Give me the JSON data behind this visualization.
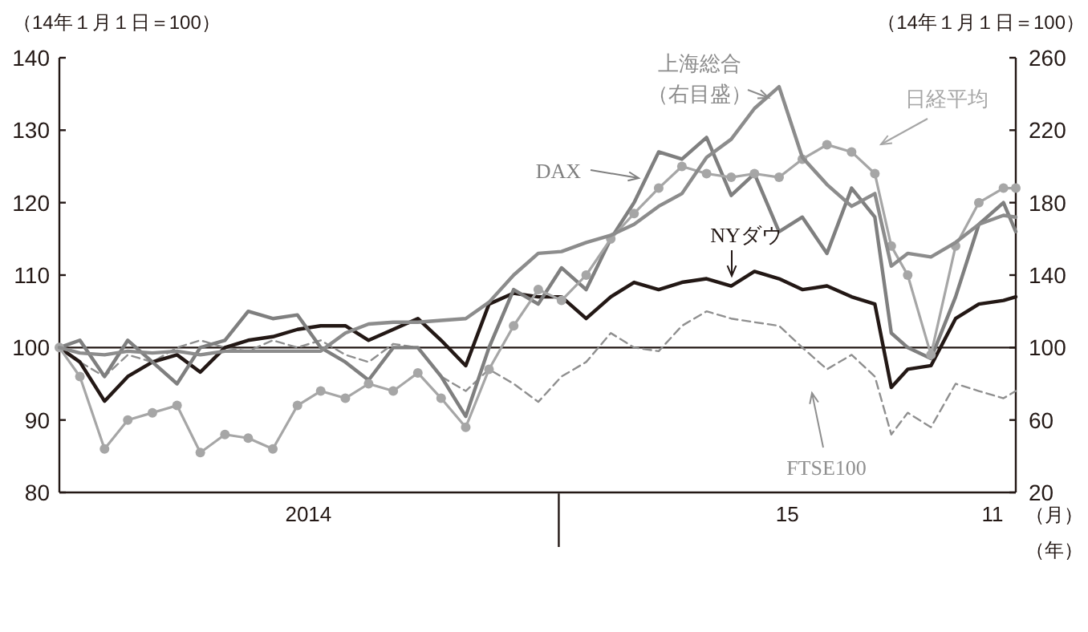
{
  "chart_data": {
    "type": "line",
    "ylabel": "（14年１月１日＝100）",
    "y2label": "（14年１月１日＝100）",
    "xlabel": "（月）",
    "annotations": [
      "（年）"
    ],
    "x": [
      "2014-01-01",
      "2014-01-16",
      "2014-02-03",
      "2014-02-20",
      "2014-03-10",
      "2014-03-28",
      "2014-04-14",
      "2014-05-02",
      "2014-05-19",
      "2014-06-06",
      "2014-06-24",
      "2014-07-11",
      "2014-07-29",
      "2014-08-15",
      "2014-09-02",
      "2014-09-20",
      "2014-10-07",
      "2014-10-25",
      "2014-11-11",
      "2014-11-29",
      "2014-12-17",
      "2015-01-03",
      "2015-01-21",
      "2015-02-08",
      "2015-02-25",
      "2015-03-15",
      "2015-04-01",
      "2015-04-19",
      "2015-05-07",
      "2015-05-24",
      "2015-06-11",
      "2015-06-28",
      "2015-07-16",
      "2015-08-03",
      "2015-08-20",
      "2015-09-01",
      "2015-09-13",
      "2015-09-30",
      "2015-10-18",
      "2015-11-04",
      "2015-11-22",
      "2015-12-01"
    ],
    "xlim": [
      "2014-01-01",
      "2015-12-01"
    ],
    "xticks": [
      {
        "value": "2014-07-02",
        "label": "2014"
      },
      {
        "value": "2015-06-17",
        "label": "15"
      },
      {
        "value": "2015-11-14",
        "label": "11"
      }
    ],
    "ylim": [
      80,
      140
    ],
    "yticks": [
      80,
      90,
      100,
      110,
      120,
      130,
      140
    ],
    "y2lim": [
      20,
      260
    ],
    "y2ticks": [
      20,
      60,
      100,
      140,
      180,
      220,
      260
    ],
    "ref_lines": [
      {
        "axis": "y",
        "value": 100,
        "color": "#231815"
      }
    ],
    "series": [
      {
        "name": "上海総合（右目盛）",
        "color": "#8c8c8c",
        "axis": "y2",
        "values": [
          100,
          97,
          96,
          98,
          97,
          98,
          96,
          98,
          98,
          98,
          98,
          98,
          108,
          113,
          114,
          114,
          115,
          116,
          125,
          140,
          152,
          153,
          158,
          162,
          168,
          178,
          185,
          205,
          215,
          232,
          244,
          205,
          190,
          178,
          185,
          145,
          152,
          150,
          158,
          168,
          173,
          172
        ]
      },
      {
        "name": "日経平均",
        "color": "#a6a6a6",
        "marker": "circle",
        "values": [
          100,
          96,
          86,
          90,
          91,
          92,
          85.5,
          88,
          87.5,
          86,
          92,
          94,
          93,
          95,
          94,
          96.5,
          93,
          89,
          97,
          103,
          108,
          106.5,
          110,
          115,
          118.5,
          122,
          125,
          124,
          123.5,
          124,
          123.5,
          126,
          128,
          127,
          124,
          114,
          110,
          99,
          114,
          120,
          122,
          122
        ]
      },
      {
        "name": "DAX",
        "color": "#7f7f7f",
        "values": [
          100,
          101,
          96,
          101,
          98,
          95,
          100,
          101,
          105,
          104,
          104.5,
          100,
          98,
          95.5,
          100,
          100,
          96,
          90.5,
          100,
          108,
          106,
          111,
          108,
          115,
          120,
          127,
          126,
          129,
          121,
          124,
          116,
          118,
          113,
          122,
          118,
          102,
          100,
          98.5,
          107,
          117,
          120,
          116
        ]
      },
      {
        "name": "NYダウ",
        "color": "#231815",
        "values": [
          100,
          98,
          92.6,
          96,
          98,
          99,
          96.6,
          100,
          101,
          101.5,
          102.5,
          103,
          103,
          101,
          102.5,
          104,
          101,
          97.5,
          106,
          107.5,
          107,
          107,
          104,
          107,
          109,
          108,
          109,
          109.5,
          108.5,
          110.5,
          109.5,
          108,
          108.5,
          107,
          106,
          94.5,
          97,
          97.5,
          104,
          106,
          106.5,
          107
        ]
      },
      {
        "name": "FTSE100",
        "color": "#8f8f8f",
        "line_style": "dashed",
        "values": [
          100,
          98,
          96,
          99,
          98,
          100,
          101,
          100,
          99.5,
          101,
          100,
          101,
          99,
          98,
          100.5,
          100,
          96,
          94,
          97,
          95,
          92.5,
          96,
          98,
          102,
          100,
          99.5,
          103,
          105,
          104,
          103.5,
          103,
          100,
          97,
          99,
          96,
          88,
          91,
          89,
          95,
          94,
          93,
          94
        ]
      }
    ]
  }
}
